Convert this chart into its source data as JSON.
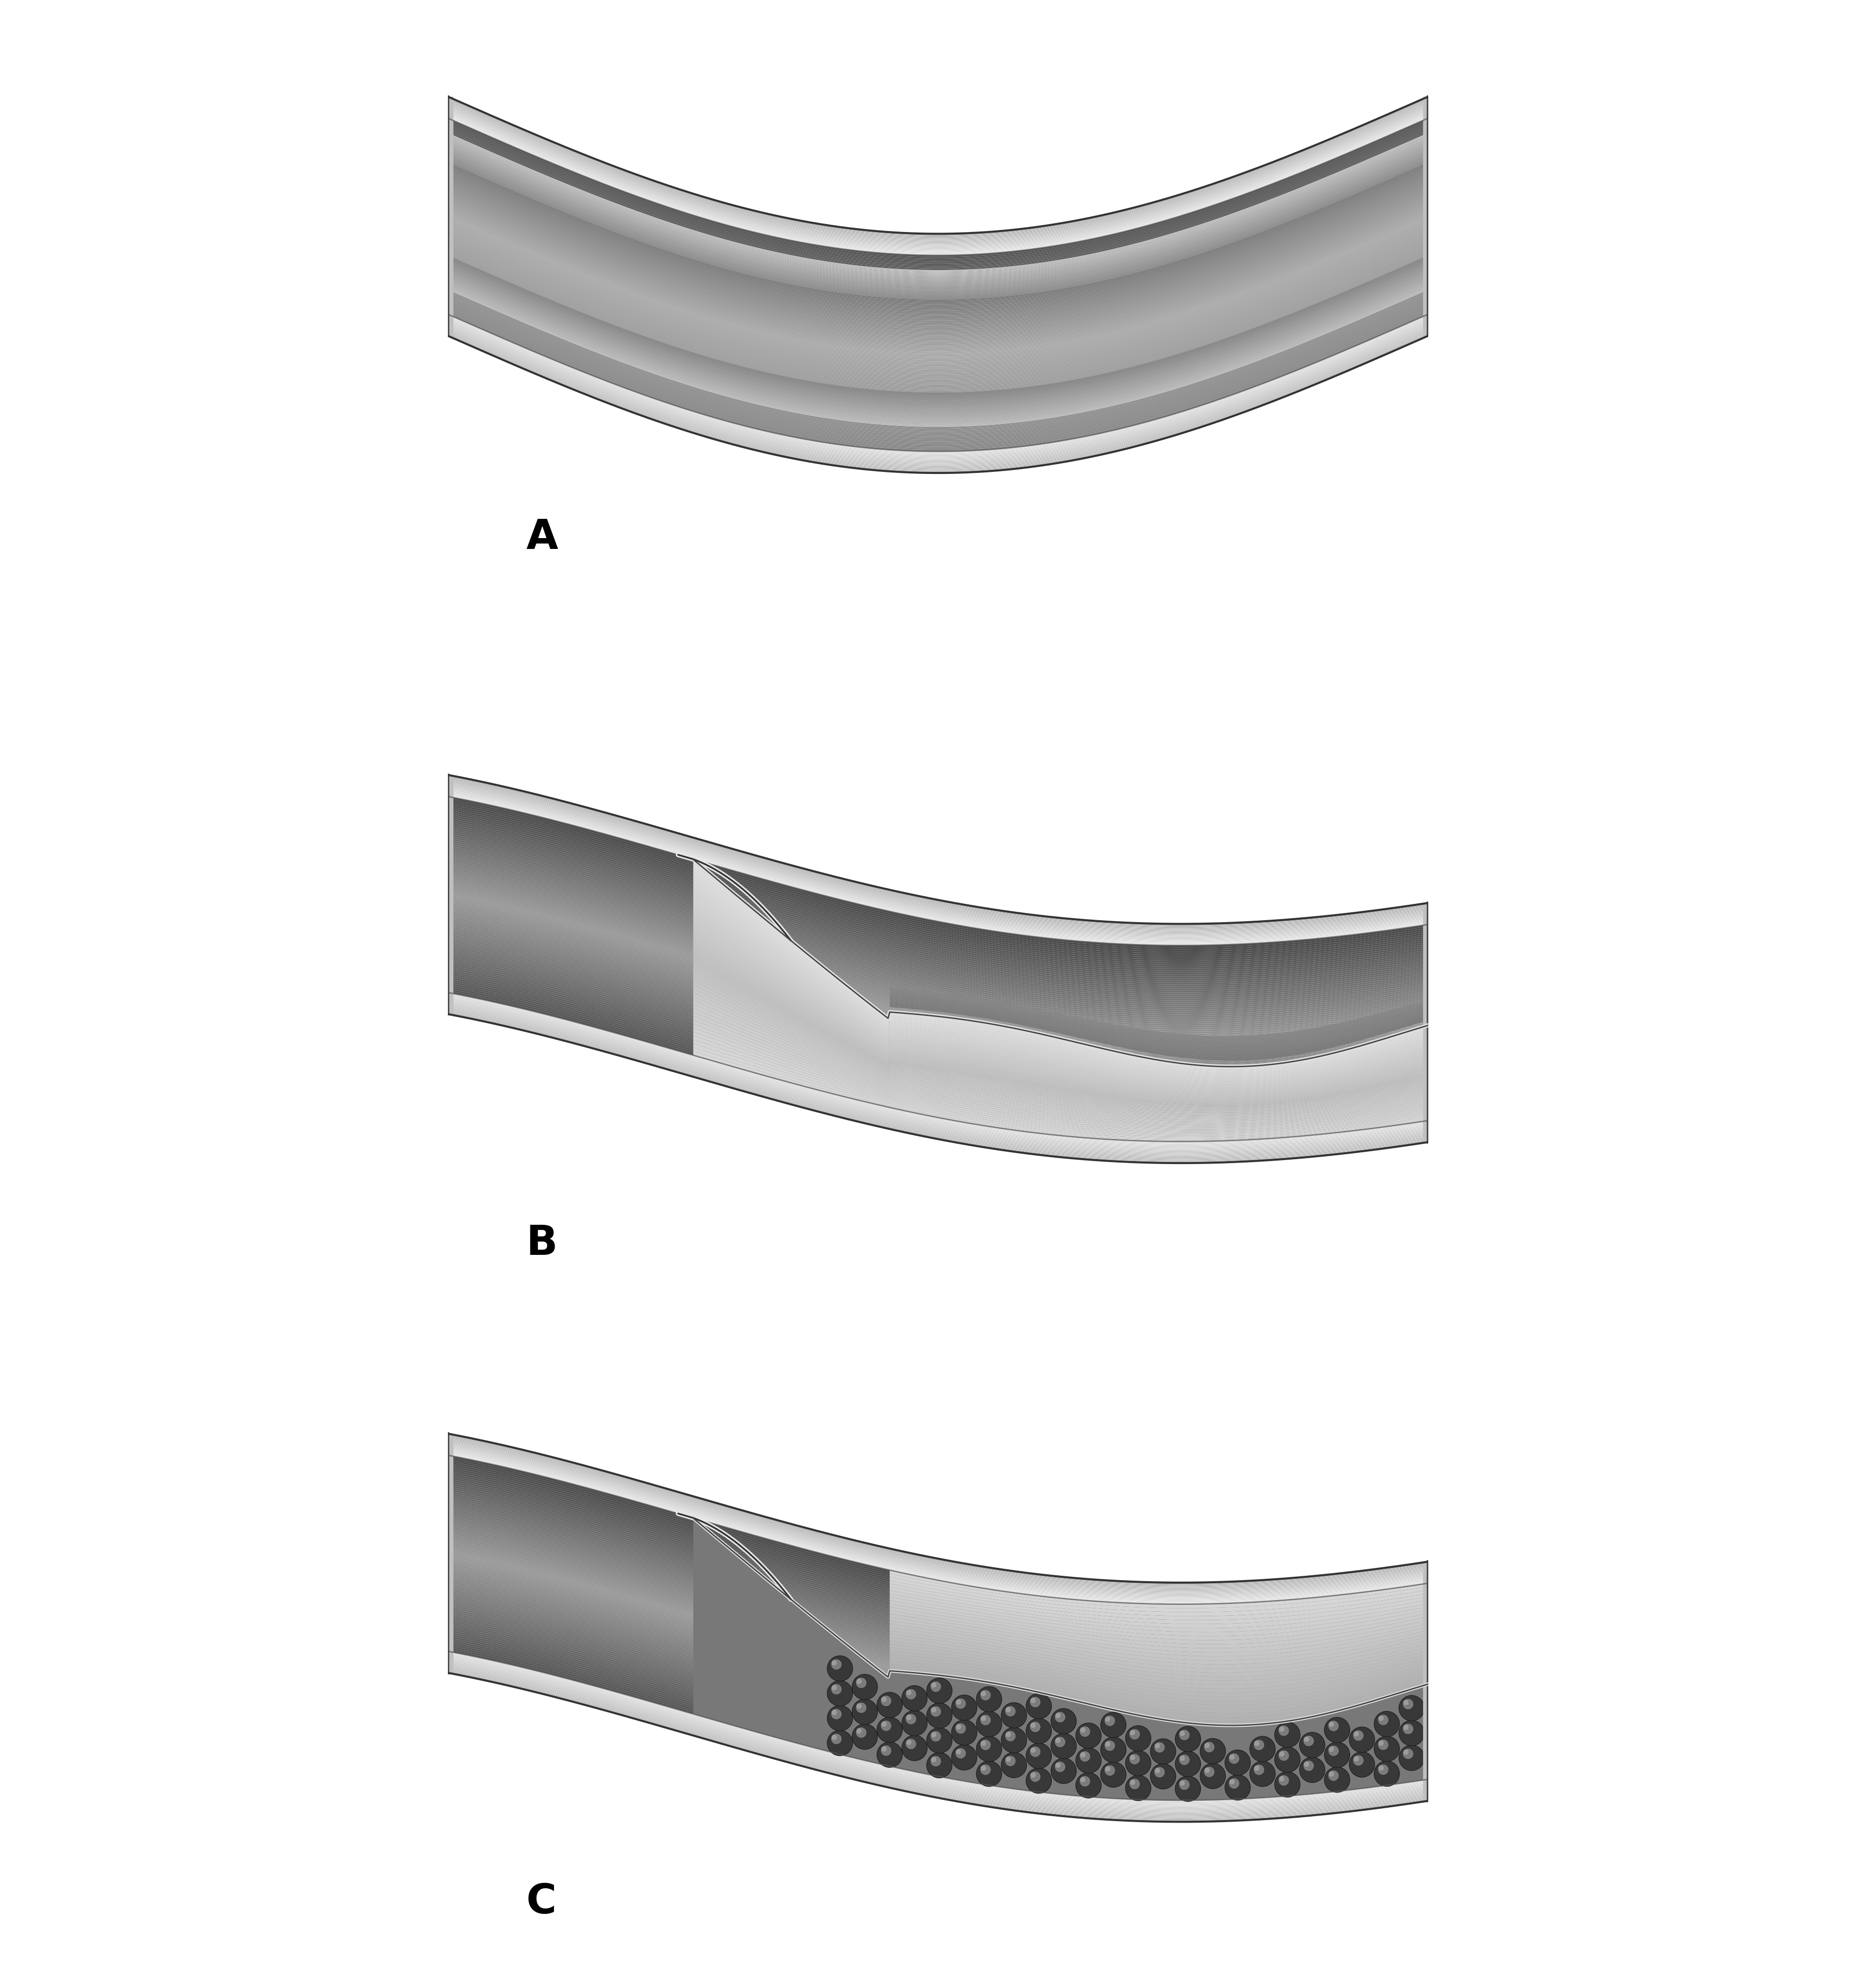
{
  "bg_color": "#ffffff",
  "label_A": "A",
  "label_B": "B",
  "label_C": "C",
  "label_fontsize": 120,
  "label_fontweight": "bold",
  "wall_color": "#d4d4d4",
  "wall_dark_edge": "#aaaaaa",
  "lumen_dark": "#666666",
  "lumen_mid": "#888888",
  "lumen_light": "#bbbbbb",
  "false_lumen_color": "#c8c8c8",
  "thrombus_dark": "#404040",
  "thrombus_mid": "#606060",
  "thrombus_light": "#909090",
  "flap_white": "#e0e0e0",
  "outline_color": "#2a2a2a"
}
